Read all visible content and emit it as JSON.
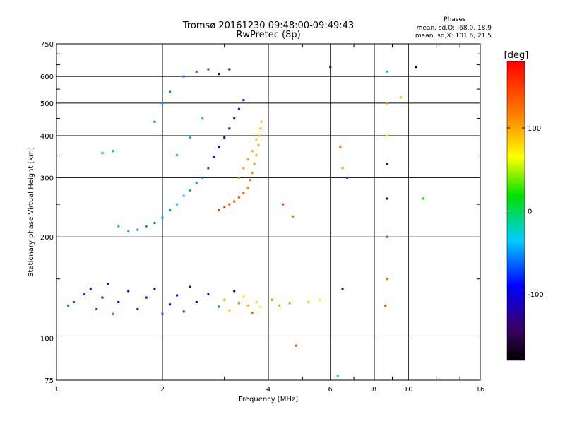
{
  "chart_data": {
    "type": "scatter",
    "title": "Tromsø 20161230 09:48:00-09:49:43",
    "subtitle": "RwPretec (8p)",
    "xlabel": "Frequency [MHz]",
    "ylabel": "Stationary phase Virtual Height [km]",
    "xscale": "log",
    "yscale": "log",
    "xlim": [
      1,
      16
    ],
    "ylim": [
      75,
      750
    ],
    "x_ticks": [
      1,
      2,
      4,
      6,
      8,
      10,
      16
    ],
    "x_tick_labels": [
      "1",
      "2",
      "4",
      "6",
      "8",
      "10",
      "16"
    ],
    "y_ticks": [
      75,
      100,
      200,
      300,
      400,
      500,
      600,
      750
    ],
    "y_tick_labels": [
      "75",
      "100",
      "200",
      "300",
      "400",
      "500",
      "600",
      "750"
    ],
    "grid": true,
    "phase_stats": {
      "heading": "Phases",
      "line_o": "mean, sd,O: -68.0, 18.9",
      "line_x": "mean, sd,X: 101.6, 21.5"
    },
    "colorbar": {
      "label": "[deg]",
      "range": [
        -180,
        180
      ],
      "ticks": [
        100,
        0,
        -100
      ],
      "tick_labels": [
        "100",
        "0",
        "-100"
      ],
      "colormap": "rainbow"
    },
    "series": [
      {
        "values_note": "E-layer echoes",
        "points": [
          [
            1.08,
            125,
            -60
          ],
          [
            1.12,
            128,
            -65
          ],
          [
            1.2,
            135,
            -75
          ],
          [
            1.25,
            140,
            -90
          ],
          [
            1.3,
            122,
            -70
          ],
          [
            1.35,
            132,
            -95
          ],
          [
            1.4,
            145,
            -85
          ],
          [
            1.45,
            118,
            -60
          ],
          [
            1.5,
            128,
            -100
          ],
          [
            1.6,
            138,
            -110
          ],
          [
            1.7,
            122,
            -80
          ],
          [
            1.8,
            132,
            -105
          ],
          [
            1.9,
            140,
            -95
          ],
          [
            2.0,
            118,
            -70
          ],
          [
            2.1,
            126,
            -100
          ],
          [
            2.2,
            134,
            -115
          ],
          [
            2.3,
            120,
            -75
          ],
          [
            2.5,
            128,
            -90
          ],
          [
            2.7,
            135,
            -85
          ],
          [
            2.9,
            124,
            -60
          ],
          [
            3.0,
            130,
            40
          ],
          [
            3.1,
            121,
            90
          ],
          [
            3.3,
            127,
            120
          ],
          [
            3.4,
            133,
            70
          ],
          [
            3.5,
            125,
            95
          ],
          [
            3.6,
            119,
            130
          ],
          [
            3.7,
            128,
            80
          ],
          [
            3.8,
            124,
            60
          ],
          [
            4.1,
            130,
            110
          ],
          [
            4.3,
            125,
            100
          ],
          [
            4.6,
            127,
            110
          ],
          [
            5.2,
            128,
            90
          ],
          [
            5.6,
            130,
            70
          ],
          [
            3.2,
            138,
            -130
          ],
          [
            2.4,
            142,
            -120
          ]
        ]
      },
      {
        "values_note": "F-layer O-mode",
        "points": [
          [
            1.35,
            355,
            -45
          ],
          [
            1.45,
            360,
            -50
          ],
          [
            1.5,
            215,
            -40
          ],
          [
            1.6,
            208,
            -45
          ],
          [
            1.7,
            210,
            -50
          ],
          [
            1.8,
            215,
            -55
          ],
          [
            1.9,
            220,
            -60
          ],
          [
            2.0,
            228,
            -55
          ],
          [
            2.1,
            240,
            -50
          ],
          [
            2.2,
            250,
            -45
          ],
          [
            2.3,
            265,
            -40
          ],
          [
            2.4,
            275,
            -45
          ],
          [
            2.5,
            290,
            -50
          ],
          [
            2.6,
            300,
            -55
          ],
          [
            2.7,
            320,
            -70
          ],
          [
            2.8,
            345,
            -80
          ],
          [
            2.9,
            370,
            -95
          ],
          [
            3.0,
            395,
            -100
          ],
          [
            3.1,
            420,
            -105
          ],
          [
            3.2,
            450,
            -110
          ],
          [
            3.3,
            480,
            -100
          ],
          [
            3.4,
            510,
            -90
          ],
          [
            1.9,
            440,
            -60
          ],
          [
            2.0,
            500,
            -50
          ],
          [
            2.1,
            540,
            -55
          ],
          [
            2.3,
            600,
            -60
          ],
          [
            2.5,
            620,
            -65
          ],
          [
            2.7,
            630,
            -70
          ],
          [
            2.9,
            610,
            -95
          ],
          [
            3.1,
            630,
            -110
          ],
          [
            2.2,
            350,
            -45
          ],
          [
            2.4,
            395,
            -40
          ],
          [
            2.6,
            450,
            -50
          ]
        ]
      },
      {
        "values_note": "F-layer X-mode",
        "points": [
          [
            2.9,
            240,
            160
          ],
          [
            3.0,
            245,
            150
          ],
          [
            3.1,
            250,
            145
          ],
          [
            3.2,
            255,
            140
          ],
          [
            3.3,
            262,
            130
          ],
          [
            3.4,
            270,
            125
          ],
          [
            3.5,
            280,
            120
          ],
          [
            3.55,
            295,
            115
          ],
          [
            3.6,
            310,
            110
          ],
          [
            3.65,
            330,
            105
          ],
          [
            3.7,
            350,
            100
          ],
          [
            3.75,
            375,
            98
          ],
          [
            3.78,
            400,
            95
          ],
          [
            3.8,
            420,
            92
          ],
          [
            3.82,
            440,
            90
          ],
          [
            3.3,
            300,
            110
          ],
          [
            3.4,
            320,
            105
          ],
          [
            3.5,
            340,
            100
          ],
          [
            3.6,
            360,
            100
          ],
          [
            3.7,
            390,
            95
          ]
        ]
      },
      {
        "values_note": "scattered echoes",
        "points": [
          [
            4.4,
            250,
            150
          ],
          [
            4.7,
            230,
            120
          ],
          [
            6.0,
            640,
            -130
          ],
          [
            6.4,
            370,
            120
          ],
          [
            6.5,
            320,
            40
          ],
          [
            6.7,
            300,
            -70
          ],
          [
            8.7,
            620,
            -20
          ],
          [
            8.7,
            500,
            110
          ],
          [
            8.7,
            400,
            80
          ],
          [
            8.7,
            330,
            -120
          ],
          [
            8.7,
            260,
            -150
          ],
          [
            8.7,
            200,
            -60
          ],
          [
            8.7,
            150,
            130
          ],
          [
            9.5,
            520,
            90
          ],
          [
            10.5,
            640,
            -170
          ],
          [
            11.0,
            260,
            20
          ],
          [
            6.5,
            140,
            -120
          ],
          [
            4.8,
            95,
            150
          ],
          [
            6.3,
            77,
            -20
          ],
          [
            8.6,
            125,
            140
          ]
        ]
      }
    ]
  }
}
